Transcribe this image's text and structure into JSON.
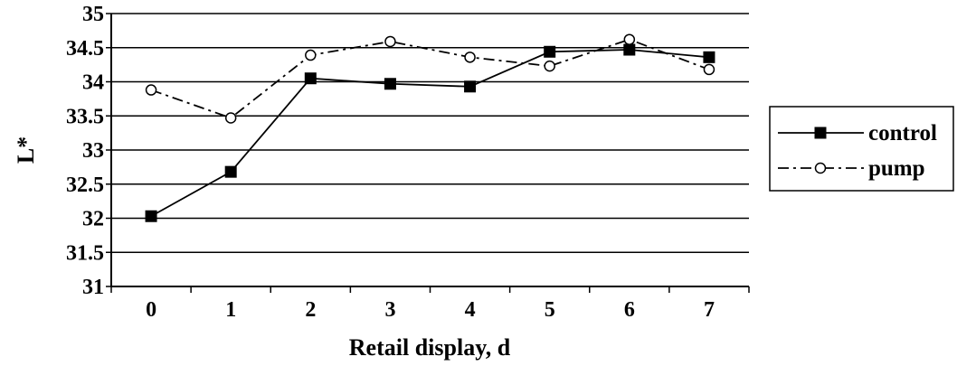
{
  "chart_data": {
    "type": "line",
    "xlabel": "Retail display, d",
    "ylabel": "L*",
    "ylim": [
      31,
      35
    ],
    "y_ticks": [
      "31",
      "31.5",
      "32",
      "32.5",
      "33",
      "33.5",
      "34",
      "34.5",
      "35"
    ],
    "categories": [
      "0",
      "1",
      "2",
      "3",
      "4",
      "5",
      "6",
      "7"
    ],
    "grid": "horizontal",
    "legend_position": "right",
    "series": [
      {
        "name": "control",
        "marker": "filled-square",
        "line": "solid",
        "values": [
          32.03,
          32.68,
          34.05,
          33.97,
          33.93,
          34.44,
          34.47,
          34.36
        ]
      },
      {
        "name": "pump",
        "marker": "open-circle",
        "line": "dash-dot",
        "values": [
          33.88,
          33.47,
          34.39,
          34.59,
          34.36,
          34.23,
          34.62,
          34.18
        ]
      }
    ]
  }
}
